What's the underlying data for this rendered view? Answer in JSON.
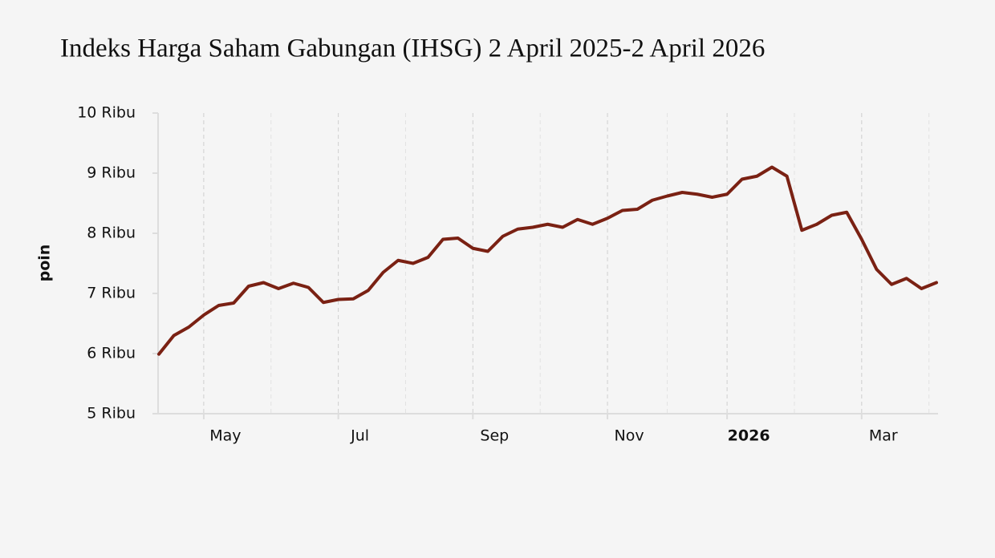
{
  "chart_data": {
    "type": "line",
    "title": "Indeks Harga Saham Gabungan (IHSG) 2 April 2025-2 April 2026",
    "y_label": "poin",
    "categories": [
      null,
      null,
      null,
      "May",
      null,
      null,
      null,
      null,
      null,
      null,
      null,
      null,
      "Jul",
      null,
      null,
      null,
      null,
      null,
      null,
      null,
      null,
      "Sep",
      null,
      null,
      null,
      null,
      null,
      null,
      null,
      null,
      "Nov",
      null,
      null,
      null,
      null,
      null,
      null,
      null,
      "2026",
      null,
      null,
      null,
      null,
      null,
      null,
      null,
      null,
      "Mar",
      null,
      null,
      null,
      null,
      null
    ],
    "series": [
      {
        "name": "IHSG",
        "color": "#7a2113",
        "values": [
          5990,
          6300,
          6440,
          6640,
          6800,
          6840,
          7120,
          7180,
          7080,
          7170,
          7100,
          6850,
          6900,
          6910,
          7050,
          7350,
          7550,
          7500,
          7600,
          7900,
          7920,
          7750,
          7700,
          7950,
          8070,
          8100,
          8150,
          8100,
          8230,
          8150,
          8250,
          8380,
          8400,
          8550,
          8620,
          8680,
          8650,
          8600,
          8650,
          8900,
          8950,
          9100,
          8950,
          8050,
          8150,
          8300,
          8350,
          7900,
          7400,
          7150,
          7250,
          7080,
          7180
        ]
      }
    ],
    "ylim": [
      5000,
      10000
    ],
    "yticks": [
      {
        "value": 5000,
        "label": "5 Ribu"
      },
      {
        "value": 6000,
        "label": "6 Ribu"
      },
      {
        "value": 7000,
        "label": "7 Ribu"
      },
      {
        "value": 8000,
        "label": "8 Ribu"
      },
      {
        "value": 9000,
        "label": "9 Ribu"
      },
      {
        "value": 10000,
        "label": "10 Ribu"
      }
    ],
    "grid": "x"
  }
}
